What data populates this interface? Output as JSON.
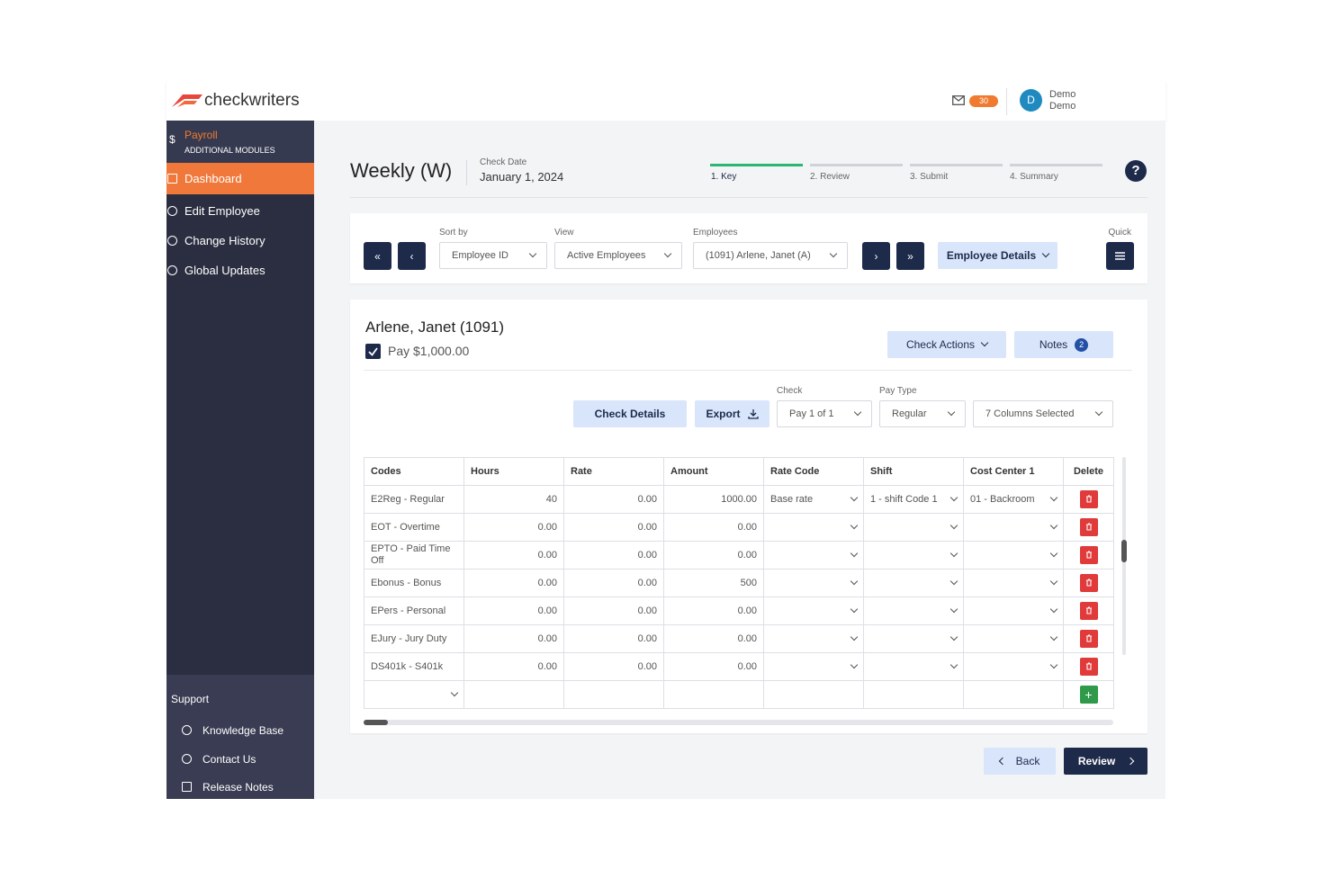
{
  "header": {
    "logo": "checkwriters",
    "mail_count": "30",
    "avatar": "D",
    "user_first": "Demo",
    "user_last": "Demo"
  },
  "sidebar": {
    "module": "Payroll",
    "module_sub": "ADDITIONAL MODULES",
    "currency": "$",
    "nav": [
      "Dashboard",
      "Edit Employee",
      "Change History",
      "Global Updates"
    ],
    "support_title": "Support",
    "support": [
      "Knowledge Base",
      "Contact Us",
      "Release Notes"
    ]
  },
  "page": {
    "title": "Weekly (W)",
    "check_date_label": "Check Date",
    "check_date": "January 1, 2024",
    "steps": [
      "1. Key",
      "2. Review",
      "3. Submit",
      "4. Summary"
    ],
    "help": "?"
  },
  "filters": {
    "sort_label": "Sort by",
    "sort": "Employee ID",
    "view_label": "View",
    "view": "Active Employees",
    "employees_label": "Employees",
    "employee": "(1091) Arlene, Janet (A)",
    "details": "Employee Details",
    "quick_label": "Quick"
  },
  "employee": {
    "name": "Arlene, Janet (1091)",
    "pay": "Pay $1,000.00",
    "check_actions": "Check Actions",
    "notes": "Notes",
    "notes_count": "2",
    "check_details": "Check Details",
    "export": "Export",
    "check_label": "Check",
    "check": "Pay 1 of 1",
    "pay_type_label": "Pay Type",
    "pay_type": "Regular",
    "columns": "7 Columns Selected"
  },
  "table": {
    "headers": [
      "Codes",
      "Hours",
      "Rate",
      "Amount",
      "Rate Code",
      "Shift",
      "Cost Center 1",
      "Delete"
    ],
    "rows": [
      {
        "code": "E2Reg - Regular",
        "hours": "40",
        "rate": "0.00",
        "amount": "1000.00",
        "rate_code": "Base rate",
        "shift": "1 - shift Code 1",
        "cost_center": "01 - Backroom"
      },
      {
        "code": "EOT - Overtime",
        "hours": "0.00",
        "rate": "0.00",
        "amount": "0.00"
      },
      {
        "code": "EPTO - Paid Time Off",
        "hours": "0.00",
        "rate": "0.00",
        "amount": "0.00"
      },
      {
        "code": "Ebonus - Bonus",
        "hours": "0.00",
        "rate": "0.00",
        "amount": "500"
      },
      {
        "code": "EPers - Personal",
        "hours": "0.00",
        "rate": "0.00",
        "amount": "0.00"
      },
      {
        "code": "EJury - Jury Duty",
        "hours": "0.00",
        "rate": "0.00",
        "amount": "0.00"
      },
      {
        "code": "DS401k - S401k",
        "hours": "0.00",
        "rate": "0.00",
        "amount": "0.00"
      }
    ]
  },
  "footer": {
    "back": "Back",
    "review": "Review"
  }
}
